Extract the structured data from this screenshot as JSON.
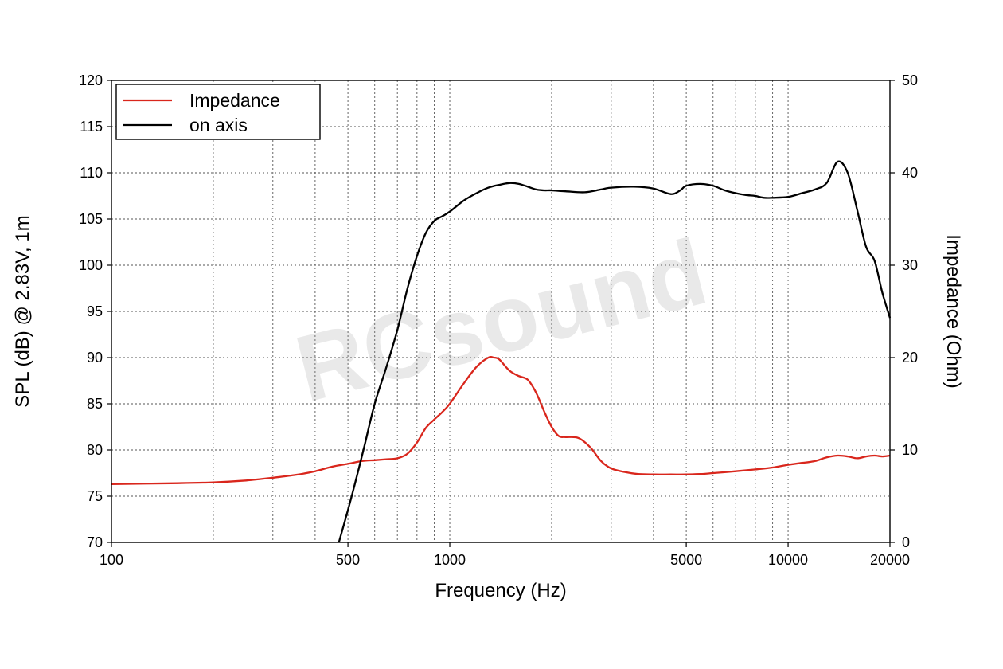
{
  "chart_data": {
    "type": "line",
    "xlabel": "Frequency (Hz)",
    "ylabel": "SPL (dB) @ 2.83V, 1m",
    "y2label": "Impedance (Ohm)",
    "x_scale": "log",
    "xlim": [
      100,
      20000
    ],
    "ylim": [
      70,
      120
    ],
    "y2lim": [
      0,
      50
    ],
    "x_ticks": [
      100,
      500,
      1000,
      5000,
      10000,
      20000
    ],
    "x_tick_labels": [
      "100",
      "500",
      "1000",
      "5000",
      "10000",
      "20000"
    ],
    "y_ticks": [
      70,
      75,
      80,
      85,
      90,
      95,
      100,
      105,
      110,
      115,
      120
    ],
    "y2_ticks": [
      0,
      10,
      20,
      30,
      40,
      50
    ],
    "grid": true,
    "legend": "top-left",
    "watermark": "RCsound",
    "series": [
      {
        "name": "Impedance",
        "axis": "right",
        "color": "#d9261c",
        "x": [
          100,
          150,
          200,
          250,
          300,
          350,
          400,
          450,
          500,
          550,
          600,
          650,
          700,
          750,
          800,
          850,
          900,
          950,
          1000,
          1100,
          1200,
          1300,
          1350,
          1400,
          1500,
          1600,
          1700,
          1800,
          1900,
          2000,
          2100,
          2200,
          2400,
          2600,
          2800,
          3000,
          3300,
          3600,
          4000,
          4500,
          5000,
          5500,
          6000,
          7000,
          8000,
          9000,
          10000,
          11000,
          12000,
          13000,
          14000,
          15000,
          16000,
          17000,
          18000,
          19000,
          20000
        ],
        "values": [
          6.3,
          6.4,
          6.5,
          6.7,
          7.0,
          7.3,
          7.7,
          8.2,
          8.5,
          8.8,
          8.9,
          9.0,
          9.1,
          9.6,
          10.8,
          12.4,
          13.3,
          14.1,
          15.0,
          17.2,
          19.0,
          20.0,
          20.0,
          19.8,
          18.6,
          18.0,
          17.6,
          16.2,
          14.2,
          12.5,
          11.5,
          11.4,
          11.3,
          10.3,
          8.8,
          8.0,
          7.6,
          7.4,
          7.35,
          7.35,
          7.35,
          7.4,
          7.5,
          7.7,
          7.9,
          8.1,
          8.4,
          8.6,
          8.8,
          9.2,
          9.4,
          9.3,
          9.1,
          9.3,
          9.4,
          9.3,
          9.4
        ]
      },
      {
        "name": "on axis",
        "axis": "left",
        "color": "#000000",
        "x": [
          470,
          500,
          530,
          560,
          600,
          650,
          700,
          750,
          800,
          850,
          900,
          950,
          1000,
          1100,
          1200,
          1300,
          1400,
          1500,
          1600,
          1700,
          1800,
          1900,
          2000,
          2200,
          2500,
          2800,
          3000,
          3500,
          4000,
          4500,
          4800,
          5000,
          5500,
          6000,
          6500,
          7000,
          7500,
          8000,
          8500,
          9000,
          10000,
          11000,
          12000,
          13000,
          14000,
          15000,
          16000,
          17000,
          18000,
          19000,
          20000
        ],
        "values": [
          70,
          73.5,
          77,
          80.5,
          85,
          89,
          93,
          97.5,
          101,
          103.5,
          104.8,
          105.3,
          105.8,
          107,
          107.8,
          108.4,
          108.7,
          108.9,
          108.8,
          108.5,
          108.2,
          108.1,
          108.1,
          108.0,
          107.9,
          108.2,
          108.4,
          108.5,
          108.3,
          107.7,
          108.1,
          108.6,
          108.8,
          108.6,
          108.1,
          107.8,
          107.6,
          107.5,
          107.3,
          107.3,
          107.4,
          107.8,
          108.2,
          108.9,
          111.2,
          110.0,
          106.0,
          102.0,
          100.5,
          97.0,
          94.3
        ]
      }
    ]
  }
}
